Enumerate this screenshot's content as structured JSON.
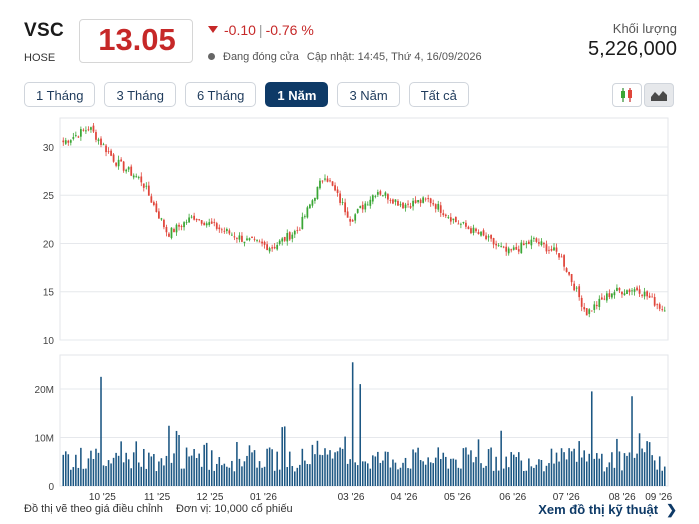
{
  "header": {
    "ticker": "VSC",
    "exchange": "HOSE",
    "price": "13.05",
    "change": "-0.10",
    "change_pct": "-0.76 %",
    "status": "Đang đóng cửa",
    "updated": "Cập nhật: 14:45, Thứ 4, 16/09/2026",
    "volume_label": "Khối lượng",
    "volume_value": "5,226,000"
  },
  "colors": {
    "up": "#3aa635",
    "down": "#e0453a",
    "volume": "#1c5783",
    "price_down": "#c62828",
    "accent": "#0e3a67"
  },
  "tabs": [
    {
      "label": "1 Tháng",
      "active": false
    },
    {
      "label": "3 Tháng",
      "active": false
    },
    {
      "label": "6 Tháng",
      "active": false
    },
    {
      "label": "1 Năm",
      "active": true
    },
    {
      "label": "3 Năm",
      "active": false
    },
    {
      "label": "Tất cả",
      "active": false
    }
  ],
  "toolbar": {
    "candlestick_icon": "candlestick-icon",
    "area_icon": "area-chart-icon",
    "active": "area"
  },
  "footer": {
    "note": "Đồ thị vẽ theo giá điều chỉnh",
    "unit": "Đơn vị: 10,000 cổ phiếu",
    "link": "Xem đồ thị kỹ thuật",
    "link_icon": "chevron-right-icon"
  },
  "chart_data": [
    {
      "type": "candlestick",
      "title": "",
      "ylim": [
        10,
        33
      ],
      "yticks": [
        10,
        15,
        20,
        25,
        30
      ],
      "x_ticks": [
        "10 '25",
        "11 '25",
        "12 '25",
        "01 '26",
        "03 '26",
        "04 '26",
        "05 '26",
        "06 '26",
        "07 '26",
        "08 '26",
        "09 '26"
      ],
      "grid": true,
      "close_path": [
        [
          "09 '25",
          30.5
        ],
        [
          "10 '25",
          32.0
        ],
        [
          "10 '25",
          28.5
        ],
        [
          "11 '25",
          26.5
        ],
        [
          "11 '25",
          21.0
        ],
        [
          "12 '25",
          22.8
        ],
        [
          "12 '25",
          21.5
        ],
        [
          "01 '26",
          20.3
        ],
        [
          "01 '26",
          19.6
        ],
        [
          "03 '26",
          21.5
        ],
        [
          "03 '26",
          27.2
        ],
        [
          "03 '26",
          22.5
        ],
        [
          "04 '26",
          25.5
        ],
        [
          "04 '26",
          24.0
        ],
        [
          "05 '26",
          24.5
        ],
        [
          "05 '26",
          22.3
        ],
        [
          "06 '26",
          20.8
        ],
        [
          "06 '26",
          19.0
        ],
        [
          "07 '26",
          20.3
        ],
        [
          "07 '26",
          18.8
        ],
        [
          "08 '26",
          12.8
        ],
        [
          "08 '26",
          15.0
        ],
        [
          "09 '26",
          15.3
        ],
        [
          "09 '26",
          13.05
        ]
      ]
    },
    {
      "type": "bar",
      "title": "",
      "ylabel": "",
      "ylim": [
        0,
        27
      ],
      "yticks": [
        0,
        10,
        20
      ],
      "ytick_labels": [
        "0",
        "10M",
        "20M"
      ],
      "grid": true,
      "spikes": [
        {
          "period": "10 '25",
          "value": 22.5
        },
        {
          "period": "03 '26",
          "value": 25.5
        },
        {
          "period": "03 '26",
          "value": 21.0
        },
        {
          "period": "08 '26",
          "value": 19.5
        },
        {
          "period": "09 '26",
          "value": 18.5
        }
      ]
    }
  ]
}
